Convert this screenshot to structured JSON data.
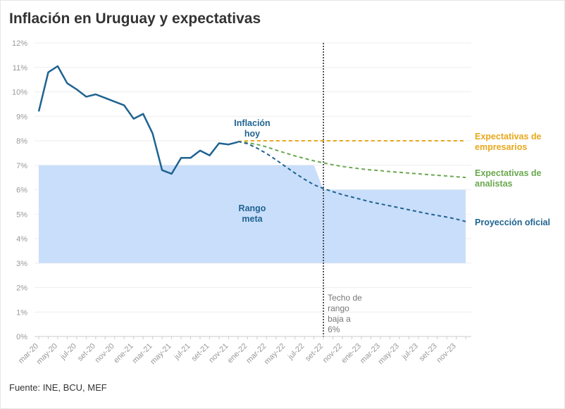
{
  "title": "Inflación en Uruguay y expectativas",
  "source": "Fuente: INE, BCU, MEF",
  "chart_data": {
    "type": "line",
    "title": "Inflación en Uruguay y expectativas",
    "xlabel": "",
    "ylabel": "",
    "ylim": [
      0,
      12
    ],
    "y_ticks": [
      "0%",
      "1%",
      "2%",
      "3%",
      "4%",
      "5%",
      "6%",
      "7%",
      "8%",
      "9%",
      "10%",
      "11%",
      "12%"
    ],
    "x_ticks": [
      "mar-20",
      "may-20",
      "jul-20",
      "set-20",
      "nov-20",
      "ene-21",
      "mar-21",
      "may-21",
      "jul-21",
      "set-21",
      "nov-21",
      "ene-22",
      "mar-22",
      "may-22",
      "jul-22",
      "set-22",
      "nov-22",
      "ene-23",
      "mar-23",
      "may-23",
      "jul-23",
      "set-23",
      "nov-23"
    ],
    "x_start": "mar-20",
    "months": 45,
    "grid": true,
    "series": [
      {
        "name": "Inflación hoy",
        "color": "#1f6391",
        "style": "solid",
        "start_month": 0,
        "values": [
          9.2,
          10.8,
          11.05,
          10.35,
          10.1,
          9.8,
          9.9,
          9.75,
          9.6,
          9.45,
          8.9,
          9.1,
          8.3,
          6.8,
          6.65,
          7.3,
          7.3,
          7.6,
          7.4,
          7.9,
          7.85,
          7.95
        ]
      },
      {
        "name": "Expectativas de empresarios",
        "color": "#e8a81c",
        "style": "dashed",
        "start_month": 21,
        "values": [
          7.97,
          8.0,
          8.0,
          8.0,
          8.0,
          8.0,
          8.0,
          8.0,
          8.0,
          8.0,
          8.0,
          8.0,
          8.0,
          8.0,
          8.0,
          8.0,
          8.0,
          8.0,
          8.0,
          8.0,
          8.0,
          8.0,
          8.0,
          8.0,
          8.0
        ]
      },
      {
        "name": "Expectativas de analistas",
        "color": "#6aa84f",
        "style": "dashed",
        "start_month": 21,
        "values": [
          7.97,
          7.92,
          7.85,
          7.75,
          7.62,
          7.5,
          7.38,
          7.28,
          7.18,
          7.1,
          7.02,
          6.95,
          6.9,
          6.85,
          6.81,
          6.78,
          6.74,
          6.71,
          6.68,
          6.65,
          6.62,
          6.59,
          6.56,
          6.53,
          6.5
        ]
      },
      {
        "name": "Proyección oficial",
        "color": "#1f6391",
        "style": "dashed",
        "start_month": 21,
        "values": [
          7.97,
          7.88,
          7.7,
          7.48,
          7.22,
          6.95,
          6.68,
          6.43,
          6.2,
          6.05,
          5.92,
          5.8,
          5.7,
          5.6,
          5.5,
          5.42,
          5.34,
          5.26,
          5.18,
          5.1,
          5.02,
          4.95,
          4.88,
          4.8,
          4.7
        ]
      }
    ],
    "band": {
      "label": "Rango meta",
      "color": "#c9defa",
      "segments": [
        {
          "from_month": 0,
          "to_month": 29,
          "low": 3,
          "high": 7
        },
        {
          "from_month": 30,
          "to_month": 45,
          "low": 3,
          "high": 6
        }
      ]
    },
    "vline": {
      "month": 30,
      "label": "Techo de rango baja a 6%"
    },
    "annotations": {
      "inflacion_hoy": "Inflación hoy",
      "rango_meta": "Rango meta",
      "empresarios": "Expectativas de empresarios",
      "analistas": "Expectativas de analistas",
      "oficial": "Proyección oficial",
      "vline_label": "Techo de rango baja a 6%"
    }
  }
}
